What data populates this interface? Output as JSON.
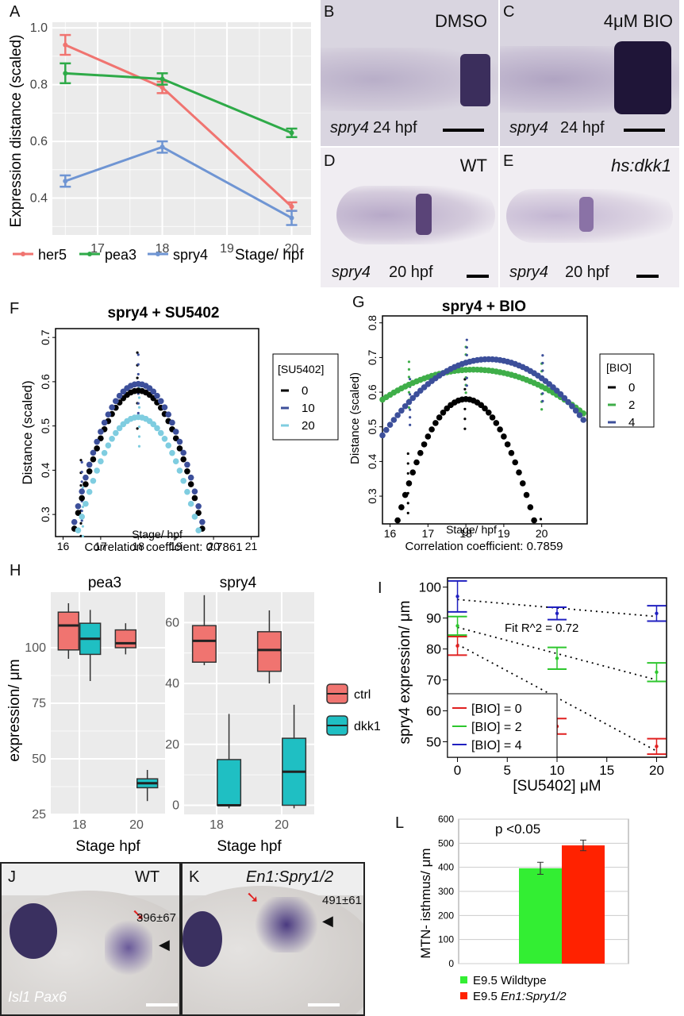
{
  "panel_letters": {
    "A": "A",
    "B": "B",
    "C": "C",
    "D": "D",
    "E": "E",
    "F": "F",
    "G": "G",
    "H": "H",
    "I": "I",
    "J": "J",
    "K": "K",
    "L": "L"
  },
  "micrographs": {
    "B": {
      "label": "DMSO",
      "gene": "spry4",
      "stage": "24 hpf"
    },
    "C": {
      "label": "4μM BIO",
      "gene": "spry4",
      "stage": "24 hpf"
    },
    "D": {
      "label": "WT",
      "gene": "spry4",
      "stage": "20 hpf"
    },
    "E": {
      "label": "hs:dkk1",
      "gene": "spry4",
      "stage": "20 hpf"
    },
    "J": {
      "label": "WT",
      "value": "396±67",
      "markers": "Isl1 Pax6"
    },
    "K": {
      "label": "En1:Spry1/2",
      "value": "491±61"
    }
  },
  "chart_data": [
    {
      "id": "A",
      "type": "line",
      "ylabel": "Expression distance (scaled)",
      "xlabel": "Stage/ hpf",
      "xlim": [
        16.3,
        20.3
      ],
      "ylim": [
        0.27,
        1.02
      ],
      "xticks": [
        17,
        18,
        19,
        20
      ],
      "yticks": [
        "0.4",
        "0.6",
        "0.8",
        "1.0"
      ],
      "series": [
        {
          "name": "her5",
          "color": "#f07470",
          "x": [
            16.5,
            18,
            20
          ],
          "y": [
            0.94,
            0.79,
            0.37
          ],
          "err": [
            0.035,
            0.02,
            0.015
          ]
        },
        {
          "name": "pea3",
          "color": "#2eaa48",
          "x": [
            16.5,
            18,
            20
          ],
          "y": [
            0.84,
            0.82,
            0.63
          ],
          "err": [
            0.035,
            0.02,
            0.015
          ]
        },
        {
          "name": "spry4",
          "color": "#6f95d3",
          "x": [
            16.5,
            18,
            20
          ],
          "y": [
            0.46,
            0.58,
            0.33
          ],
          "err": [
            0.02,
            0.02,
            0.025
          ]
        }
      ]
    },
    {
      "id": "F",
      "type": "scatter",
      "title": "spry4 + SU5402",
      "xlabel": "Stage/ hpf",
      "ylabel": "Distance (scaled)",
      "xlim": [
        15.8,
        21.2
      ],
      "ylim": [
        0.25,
        0.72
      ],
      "xticks": [
        "16",
        "17",
        "18",
        "19",
        "20",
        "21"
      ],
      "yticks": [
        "0.3",
        "0.4",
        "0.5",
        "0.6",
        "0.7"
      ],
      "note": "Correlation coefficient: 0.7861",
      "legend_title": "[SU5402]",
      "series": [
        {
          "name": "0",
          "color": "#000000",
          "peak": 0.58,
          "at": 18,
          "k": 0.108
        },
        {
          "name": "10",
          "color": "#3c4f9a",
          "peak": 0.595,
          "at": 18,
          "k": 0.108
        },
        {
          "name": "20",
          "color": "#7fcde0",
          "peak": 0.52,
          "at": 18,
          "k": 0.1
        }
      ]
    },
    {
      "id": "G",
      "type": "scatter",
      "title": "spry4 + BIO",
      "xlabel": "Stage/ hpf",
      "ylabel": "Distance (scaled)",
      "xlim": [
        15.8,
        21.2
      ],
      "ylim": [
        0.22,
        0.82
      ],
      "xticks": [
        "16",
        "17",
        "18",
        "19",
        "20"
      ],
      "yticks": [
        "0.3",
        "0.4",
        "0.5",
        "0.6",
        "0.7",
        "0.8"
      ],
      "note": "Correlation coefficient: 0.7859",
      "legend_title": "[BIO]",
      "series": [
        {
          "name": "0",
          "color": "#000000",
          "peak": 0.58,
          "at": 18,
          "k": 0.108
        },
        {
          "name": "2",
          "color": "#3fae49",
          "peak": 0.665,
          "at": 18.2,
          "k": 0.015
        },
        {
          "name": "4",
          "color": "#3c4f9a",
          "peak": 0.695,
          "at": 18.6,
          "k": 0.028
        }
      ]
    },
    {
      "id": "H1",
      "type": "box",
      "title": "pea3",
      "xlabel": "Stage hpf",
      "ylabel": "expression/ μm",
      "categories": [
        "18",
        "20"
      ],
      "ylim": [
        25,
        125
      ],
      "yticks": [
        "25",
        "50",
        "75",
        "100"
      ],
      "boxes": [
        {
          "cat": "18",
          "group": "ctrl",
          "min": 95,
          "q1": 99,
          "med": 110,
          "q3": 116,
          "max": 120
        },
        {
          "cat": "18",
          "group": "dkk1",
          "min": 85,
          "q1": 97,
          "med": 104,
          "q3": 111,
          "max": 117
        },
        {
          "cat": "20",
          "group": "ctrl",
          "min": 97,
          "q1": 100,
          "med": 102,
          "q3": 108,
          "max": 111
        },
        {
          "cat": "20",
          "group": "dkk1",
          "min": 31,
          "q1": 37,
          "med": 39,
          "q3": 41,
          "max": 45
        }
      ]
    },
    {
      "id": "H2",
      "type": "box",
      "title": "spry4",
      "xlabel": "Stage hpf",
      "categories": [
        "18",
        "20"
      ],
      "ylim": [
        -3,
        70
      ],
      "yticks": [
        "0",
        "20",
        "40",
        "60"
      ],
      "boxes": [
        {
          "cat": "18",
          "group": "ctrl",
          "min": 46,
          "q1": 47,
          "med": 54,
          "q3": 59,
          "max": 69
        },
        {
          "cat": "18",
          "group": "dkk1",
          "min": -1,
          "q1": 0,
          "med": 0,
          "q3": 15,
          "max": 30
        },
        {
          "cat": "20",
          "group": "ctrl",
          "min": 40,
          "q1": 44,
          "med": 51,
          "q3": 57,
          "max": 64
        },
        {
          "cat": "20",
          "group": "dkk1",
          "min": -1,
          "q1": 0,
          "med": 11,
          "q3": 22,
          "max": 33
        }
      ],
      "legend": [
        {
          "name": "ctrl",
          "color": "#f07470"
        },
        {
          "name": "dkk1",
          "color": "#1fbfc3"
        }
      ]
    },
    {
      "id": "I",
      "type": "scatter",
      "xlabel": "[SU5402] μM",
      "ylabel": "spry4 expression/ μm",
      "xlim": [
        -1,
        21
      ],
      "ylim": [
        45,
        103
      ],
      "xticks": [
        "0",
        "5",
        "10",
        "15",
        "20"
      ],
      "yticks": [
        "50",
        "60",
        "70",
        "80",
        "90",
        "100"
      ],
      "annotation": "Fit R^2 = 0.72",
      "series": [
        {
          "name": "[BIO] = 0",
          "color": "#e02020",
          "x": [
            0,
            10,
            20
          ],
          "y": [
            81,
            55,
            48.5
          ],
          "err": [
            3,
            2.5,
            2.5
          ],
          "fit": [
            81.5,
            47
          ]
        },
        {
          "name": "[BIO] = 2",
          "color": "#2ec62e",
          "x": [
            0,
            10,
            20
          ],
          "y": [
            87.5,
            77,
            72.5
          ],
          "err": [
            3,
            3.5,
            3
          ],
          "fit": [
            87,
            70
          ]
        },
        {
          "name": "[BIO] = 4",
          "color": "#2020c0",
          "x": [
            0,
            10,
            20
          ],
          "y": [
            97,
            91.5,
            91.5
          ],
          "err": [
            5,
            2,
            2.5
          ],
          "fit": [
            96,
            90.5
          ]
        }
      ]
    },
    {
      "id": "L",
      "type": "bar",
      "ylabel": "MTN- isthmus/ μm",
      "ylim": [
        0,
        600
      ],
      "yticks": [
        "0",
        "100",
        "200",
        "300",
        "400",
        "500",
        "600"
      ],
      "annotation": "p <0.05",
      "series": [
        {
          "name": "E9.5 Wildtype",
          "color": "#33ee33",
          "value": 396,
          "err": 25
        },
        {
          "name": "E9.5 En1:Spry1/2",
          "color": "#ff2200",
          "value": 491,
          "err": 22
        }
      ]
    }
  ],
  "colors": {
    "panel_bg": "#ebebeb",
    "grid": "#ffffff"
  }
}
